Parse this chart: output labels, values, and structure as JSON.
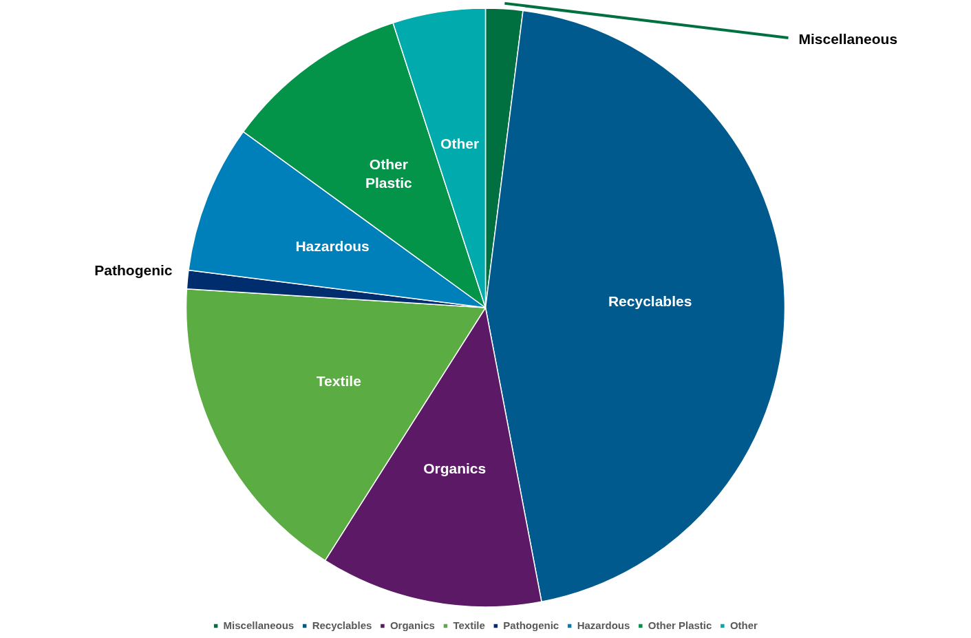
{
  "chart_data": {
    "type": "pie",
    "categories": [
      "Miscellaneous",
      "Recyclables",
      "Organics",
      "Textile",
      "Pathogenic",
      "Hazardous",
      "Other Plastic",
      "Other"
    ],
    "values": [
      2,
      45,
      12,
      17,
      1,
      8,
      10,
      5
    ],
    "colors": [
      "#007041",
      "#005a8e",
      "#5c1966",
      "#5aac43",
      "#002d6e",
      "#0080ba",
      "#03944a",
      "#00aaad"
    ],
    "legend": "bottom"
  }
}
